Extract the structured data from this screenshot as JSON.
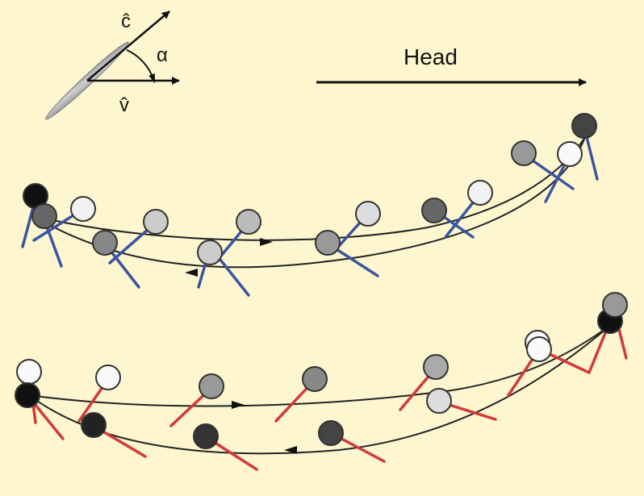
{
  "inset": {
    "c_label": "ĉ",
    "v_label": "v̂",
    "angle_label": "α"
  },
  "direction": {
    "label": "Head"
  },
  "colors": {
    "background": "#fdf6cf",
    "blue_stroke": "#3a55a0",
    "red_stroke": "#d23a3a",
    "path_line": "#222222",
    "cell_outline": "#333333",
    "cell_body": "#a9a9a9"
  }
}
